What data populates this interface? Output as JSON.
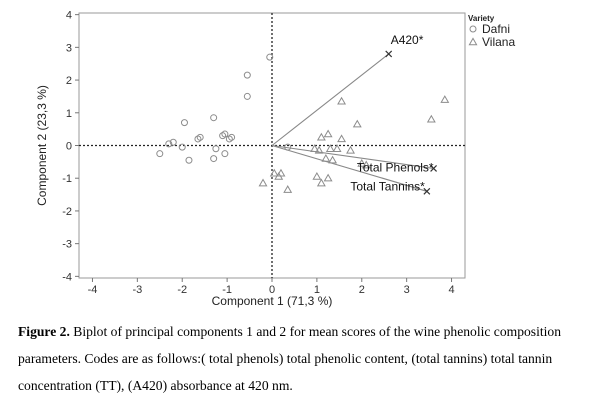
{
  "chart_data": {
    "type": "scatter",
    "title": "",
    "xlabel": "Component 1 (71,3 %)",
    "ylabel": "Component 2 (23,3 %)",
    "xlim": [
      -4.3,
      4.3
    ],
    "ylim": [
      -4.05,
      4.05
    ],
    "x_ticks": [
      -4,
      -3,
      -2,
      -1,
      0,
      1,
      2,
      3,
      4
    ],
    "y_ticks": [
      -4,
      -3,
      -2,
      -1,
      0,
      1,
      2,
      3,
      4
    ],
    "reference_lines": {
      "x": 0,
      "y": 0,
      "style": "dotted"
    },
    "grid": false,
    "legend": {
      "title": "Variety",
      "placement": "right",
      "entries": [
        {
          "name": "Dafni",
          "marker": "circle"
        },
        {
          "name": "Vilana",
          "marker": "triangle"
        }
      ]
    },
    "series": [
      {
        "name": "Dafni",
        "marker": "circle",
        "color": "#8c8c8c",
        "points": [
          [
            -0.55,
            2.15
          ],
          [
            -0.55,
            1.5
          ],
          [
            -0.05,
            2.7
          ],
          [
            -1.3,
            0.85
          ],
          [
            -1.6,
            0.25
          ],
          [
            -1.65,
            0.2
          ],
          [
            -1.95,
            0.7
          ],
          [
            -1.1,
            0.3
          ],
          [
            -1.05,
            0.35
          ],
          [
            -0.95,
            0.2
          ],
          [
            -0.9,
            0.25
          ],
          [
            -2.3,
            0.05
          ],
          [
            -2.2,
            0.1
          ],
          [
            -2.0,
            -0.05
          ],
          [
            -2.5,
            -0.25
          ],
          [
            -1.85,
            -0.45
          ],
          [
            -1.25,
            -0.1
          ],
          [
            -1.3,
            -0.4
          ],
          [
            -1.05,
            -0.25
          ],
          [
            0.35,
            -0.05
          ]
        ]
      },
      {
        "name": "Vilana",
        "marker": "triangle",
        "color": "#8c8c8c",
        "points": [
          [
            3.85,
            1.4
          ],
          [
            3.55,
            0.8
          ],
          [
            1.55,
            1.35
          ],
          [
            1.9,
            0.65
          ],
          [
            1.1,
            0.25
          ],
          [
            1.25,
            0.35
          ],
          [
            1.55,
            0.2
          ],
          [
            0.95,
            -0.1
          ],
          [
            1.05,
            -0.15
          ],
          [
            1.3,
            -0.1
          ],
          [
            1.45,
            -0.1
          ],
          [
            1.75,
            -0.15
          ],
          [
            1.2,
            -0.4
          ],
          [
            1.35,
            -0.45
          ],
          [
            0.05,
            -0.85
          ],
          [
            0.15,
            -0.95
          ],
          [
            0.2,
            -0.85
          ],
          [
            -0.2,
            -1.15
          ],
          [
            1.0,
            -0.95
          ],
          [
            1.25,
            -1.0
          ],
          [
            1.1,
            -1.15
          ],
          [
            0.35,
            -1.35
          ],
          [
            2.0,
            -0.55
          ],
          [
            2.1,
            -0.6
          ]
        ]
      }
    ],
    "vectors": [
      {
        "label": "A420*",
        "x": 2.6,
        "y": 2.8
      },
      {
        "label": "Total Phenols*",
        "x": 3.6,
        "y": -0.7
      },
      {
        "label": "Total Tannins*",
        "x": 3.45,
        "y": -1.4
      }
    ]
  },
  "caption": {
    "label": "Figure 2.",
    "text": "Biplot of principal components 1 and 2 for mean scores of the wine phenolic composition parameters. Codes are as follows:( total phenols) total phenolic content, (total tannins) total tannin concentration (TT), (A420) absorbance at 420 nm."
  }
}
